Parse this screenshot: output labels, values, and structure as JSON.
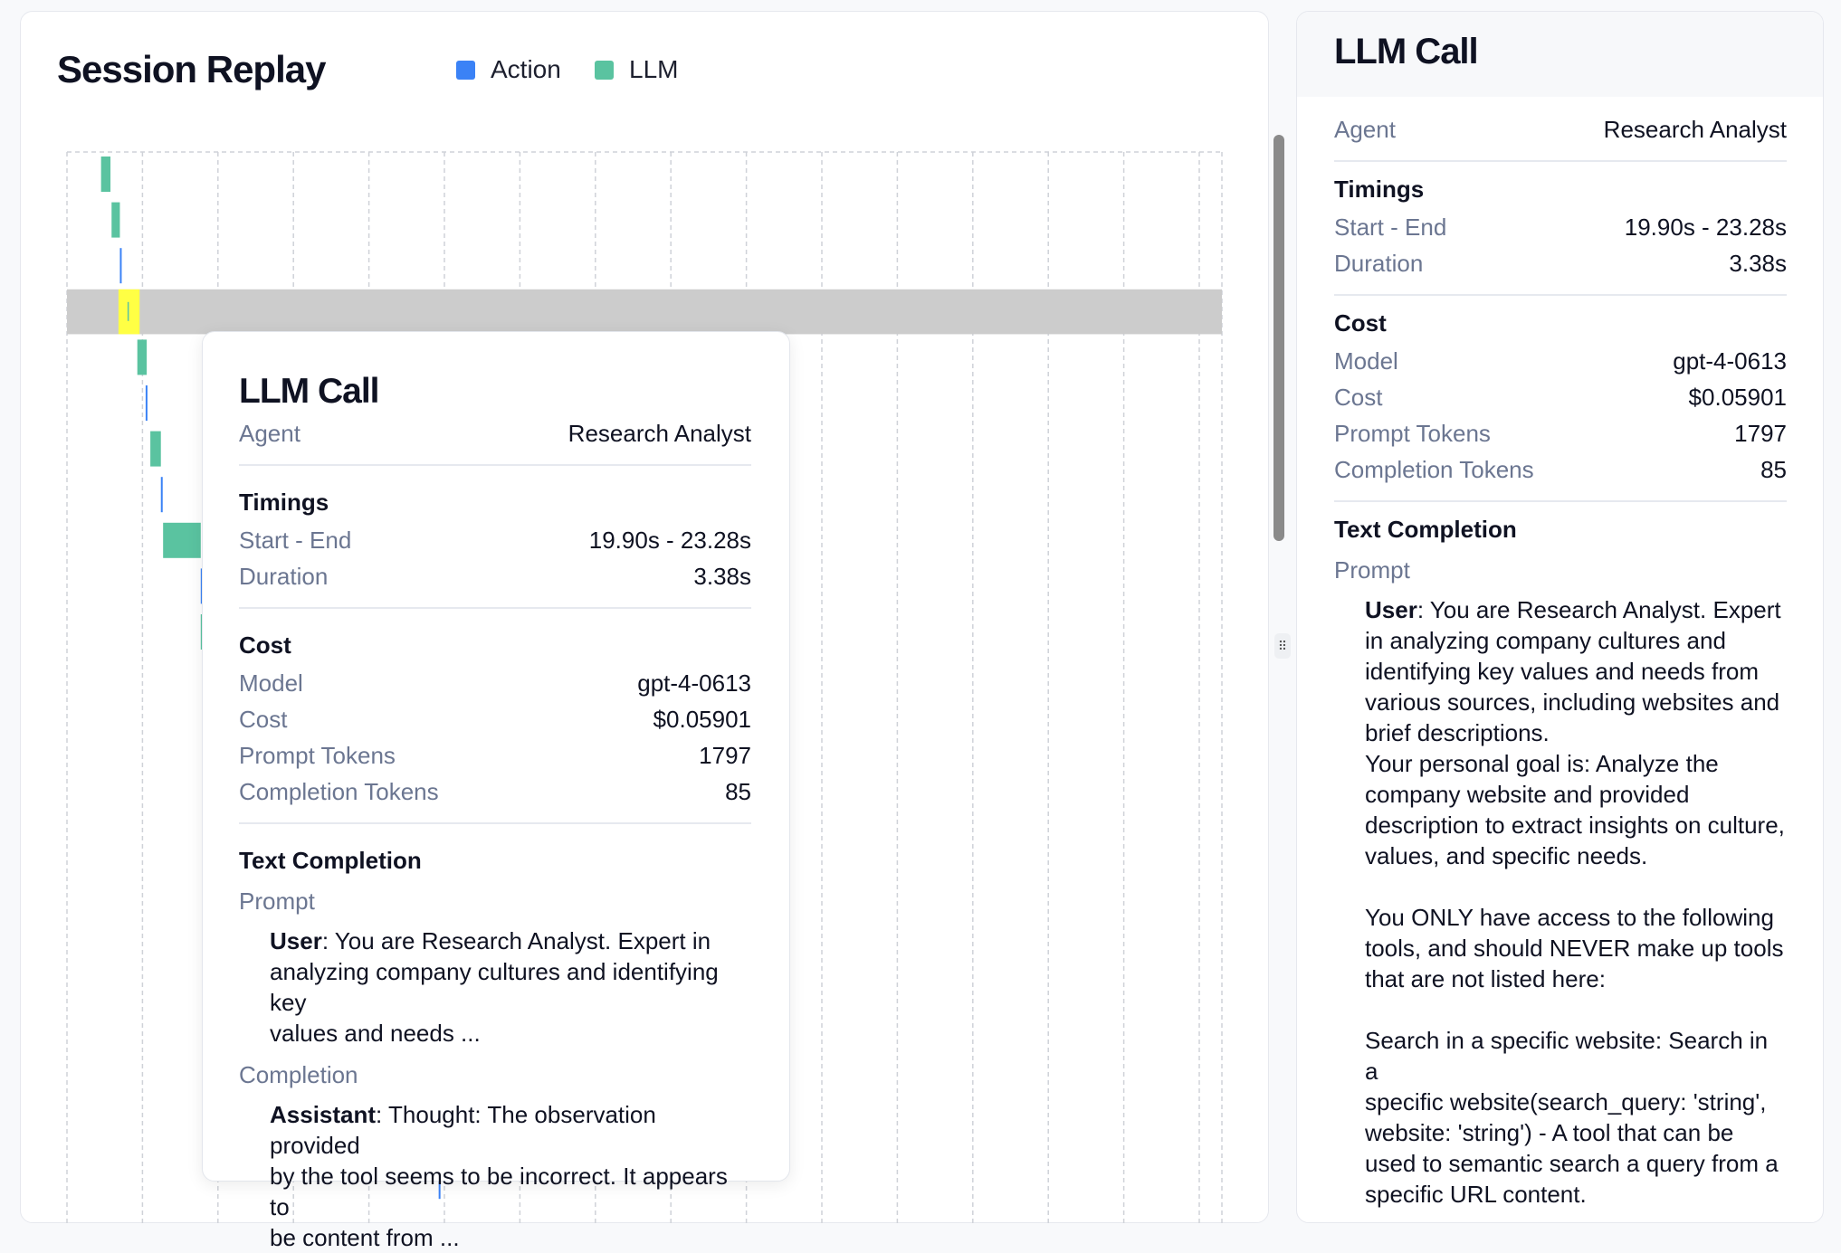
{
  "session_replay": {
    "title": "Session Replay",
    "legend": [
      {
        "label": "Action",
        "color": "#3b82f6"
      },
      {
        "label": "LLM",
        "color": "#5ac3a0"
      }
    ]
  },
  "chart_data": {
    "type": "gantt",
    "unit": "seconds",
    "highlight_color": "#cccccc",
    "selected_color": "#ffff44",
    "selected_index": 3,
    "spans": [
      {
        "type": "LLM",
        "row": 0,
        "start": 12.3,
        "end": 15.7
      },
      {
        "type": "LLM",
        "row": 1,
        "start": 16.1,
        "end": 19.1
      },
      {
        "type": "Action",
        "row": 2,
        "start": 19.1,
        "end": 19.3
      },
      {
        "type": "LLM",
        "row": 3,
        "start": 19.9,
        "end": 23.28
      },
      {
        "type": "LLM",
        "row": 4,
        "start": 25.4,
        "end": 28.8
      },
      {
        "type": "Action",
        "row": 5,
        "start": 28.4,
        "end": 28.6
      },
      {
        "type": "LLM",
        "row": 6,
        "start": 30.1,
        "end": 33.9
      },
      {
        "type": "Action",
        "row": 7,
        "start": 33.9,
        "end": 34.1
      },
      {
        "type": "LLM",
        "row": 8,
        "start": 34.7,
        "end": 48.3
      },
      {
        "type": "Action",
        "row": 9,
        "start": 48.3,
        "end": 48.5
      },
      {
        "type": "LLM",
        "row": 10,
        "start": 48.3,
        "end": 48.6
      },
      {
        "type": "Action",
        "row": 22,
        "start": 134.2,
        "end": 134.4
      }
    ]
  },
  "popup": {
    "title": "LLM Call",
    "agent_label": "Agent",
    "agent": "Research Analyst",
    "timings_heading": "Timings",
    "start_end_label": "Start - End",
    "start_end": "19.90s - 23.28s",
    "duration_label": "Duration",
    "duration": "3.38s",
    "cost_heading": "Cost",
    "model_label": "Model",
    "model": "gpt-4-0613",
    "cost_label": "Cost",
    "cost": "$0.05901",
    "prompt_tokens_label": "Prompt Tokens",
    "prompt_tokens": "1797",
    "completion_tokens_label": "Completion Tokens",
    "completion_tokens": "85",
    "text_heading": "Text Completion",
    "prompt_label": "Prompt",
    "prompt_role": "User",
    "prompt_lines": [
      ": You are Research Analyst. Expert in",
      "analyzing company cultures and identifying key",
      "values and needs ..."
    ],
    "completion_label": "Completion",
    "completion_role": "Assistant",
    "completion_lines": [
      ": Thought: The observation provided",
      "by the tool seems to be incorrect. It appears to",
      "be content from ..."
    ]
  },
  "sidebar": {
    "title": "LLM Call",
    "agent_label": "Agent",
    "agent": "Research Analyst",
    "timings_heading": "Timings",
    "start_end_label": "Start - End",
    "start_end": "19.90s - 23.28s",
    "duration_label": "Duration",
    "duration": "3.38s",
    "cost_heading": "Cost",
    "model_label": "Model",
    "model": "gpt-4-0613",
    "cost_label": "Cost",
    "cost": "$0.05901",
    "prompt_tokens_label": "Prompt Tokens",
    "prompt_tokens": "1797",
    "completion_tokens_label": "Completion Tokens",
    "completion_tokens": "85",
    "text_heading": "Text Completion",
    "prompt_label": "Prompt",
    "prompt_role": "User",
    "prompt_lines": [
      ": You are Research Analyst. Expert",
      "in analyzing company cultures and",
      "identifying key values and needs from",
      "various sources, including websites and",
      "brief descriptions.",
      "Your personal goal is: Analyze the",
      "company website and provided",
      "description to extract insights on culture,",
      "values, and specific needs.",
      "",
      "You ONLY have access to the following",
      "tools, and should NEVER make up tools",
      "that are not listed here:",
      "",
      "Search in a specific website: Search in a",
      "specific website(search_query: 'string',",
      "website: 'string') - A tool that can be",
      "used to semantic search a query from a",
      "specific URL content."
    ]
  }
}
